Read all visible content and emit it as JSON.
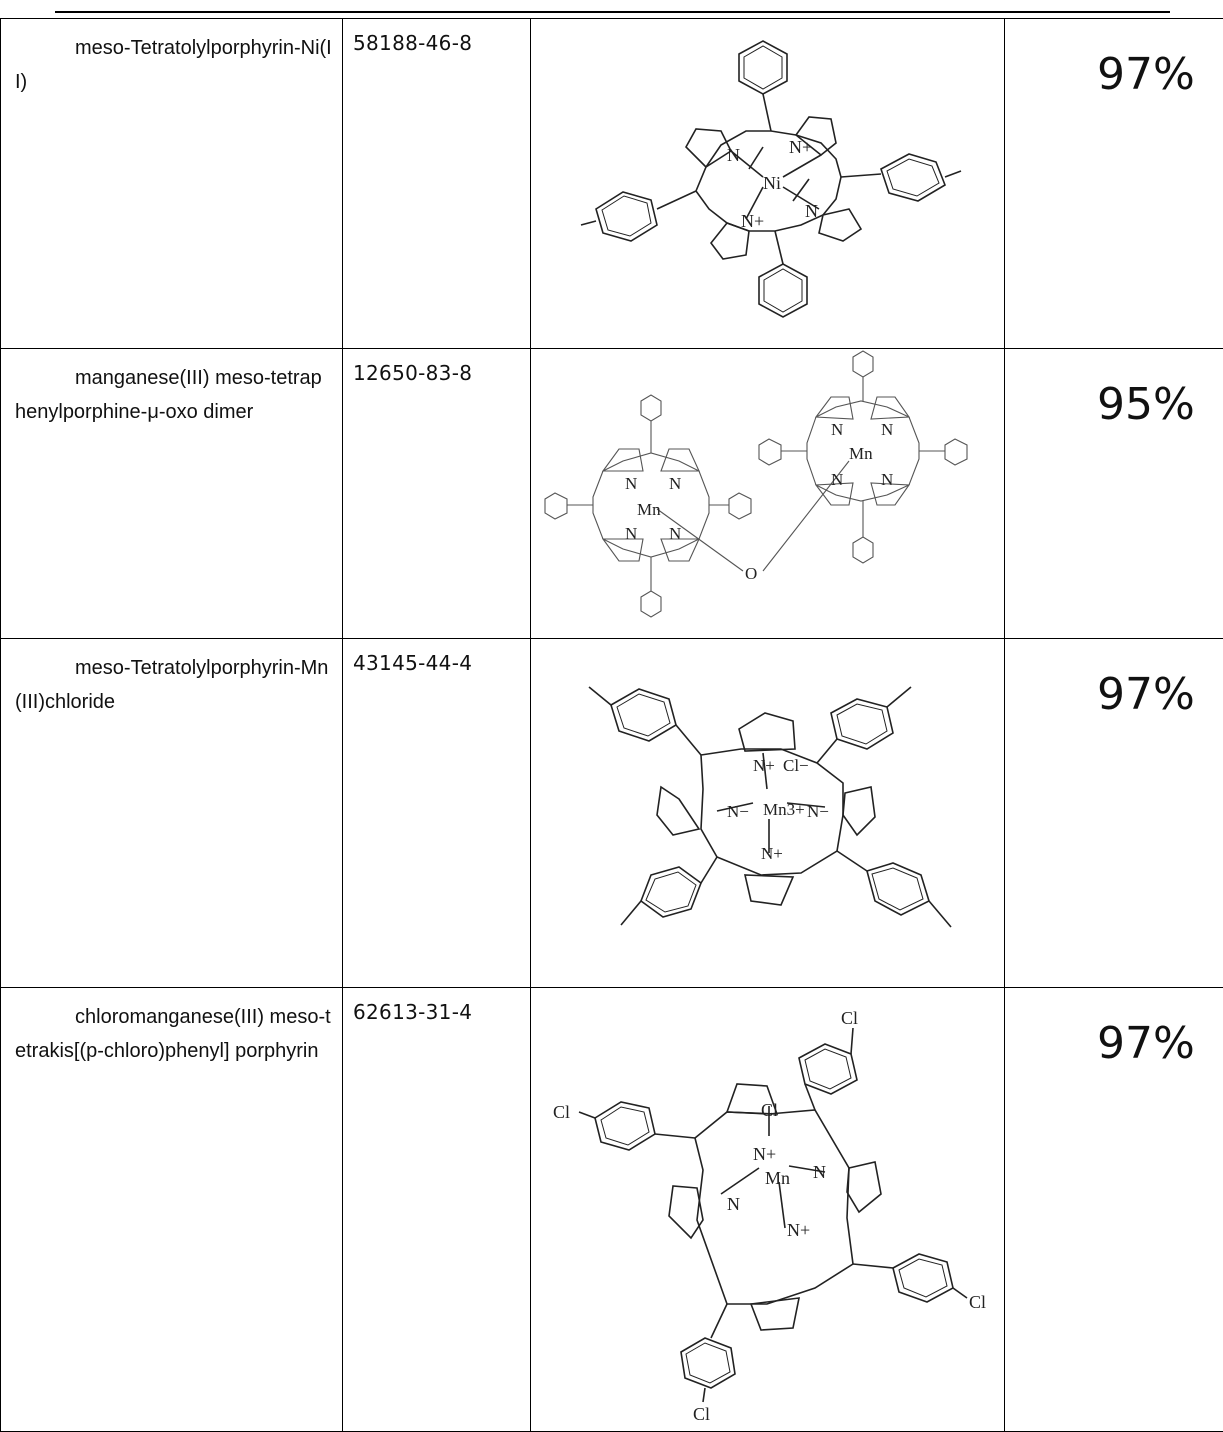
{
  "rows": [
    {
      "name": "meso-Tetratolylporphyrin-Ni(II)",
      "cas": "58188-46-8",
      "purity": "97%",
      "structure_icon": "ni-tetratolylporphyrin-structure-icon",
      "atom_labels": [
        "N",
        "N+",
        "Ni",
        "N+",
        "N"
      ]
    },
    {
      "name": "manganese(III) meso-tetraphenylporphine-μ-oxo dimer",
      "cas": "12650-83-8",
      "purity": "95%",
      "structure_icon": "mn-oxo-dimer-structure-icon",
      "atom_labels": [
        "N",
        "N",
        "Mn",
        "N",
        "N",
        "O",
        "N",
        "N",
        "Mn",
        "N",
        "N"
      ]
    },
    {
      "name": "meso-Tetratolylporphyrin-Mn(III)chloride",
      "cas": "43145-44-4",
      "purity": "97%",
      "structure_icon": "mn-chloride-tetratolylporphyrin-structure-icon",
      "atom_labels": [
        "N+",
        "Cl−",
        "N−",
        "Mn3+",
        "N−",
        "N+"
      ]
    },
    {
      "name": "chloromanganese(III) meso-tetrakis[(p-chloro)phenyl] porphyrin",
      "cas": "62613-31-4",
      "purity": "97%",
      "structure_icon": "mn-tetrachlorophenylporphyrin-structure-icon",
      "atom_labels": [
        "Cl",
        "Cl",
        "Cl",
        "N+",
        "Mn",
        "N",
        "N",
        "N+",
        "Cl",
        "Cl"
      ]
    }
  ]
}
